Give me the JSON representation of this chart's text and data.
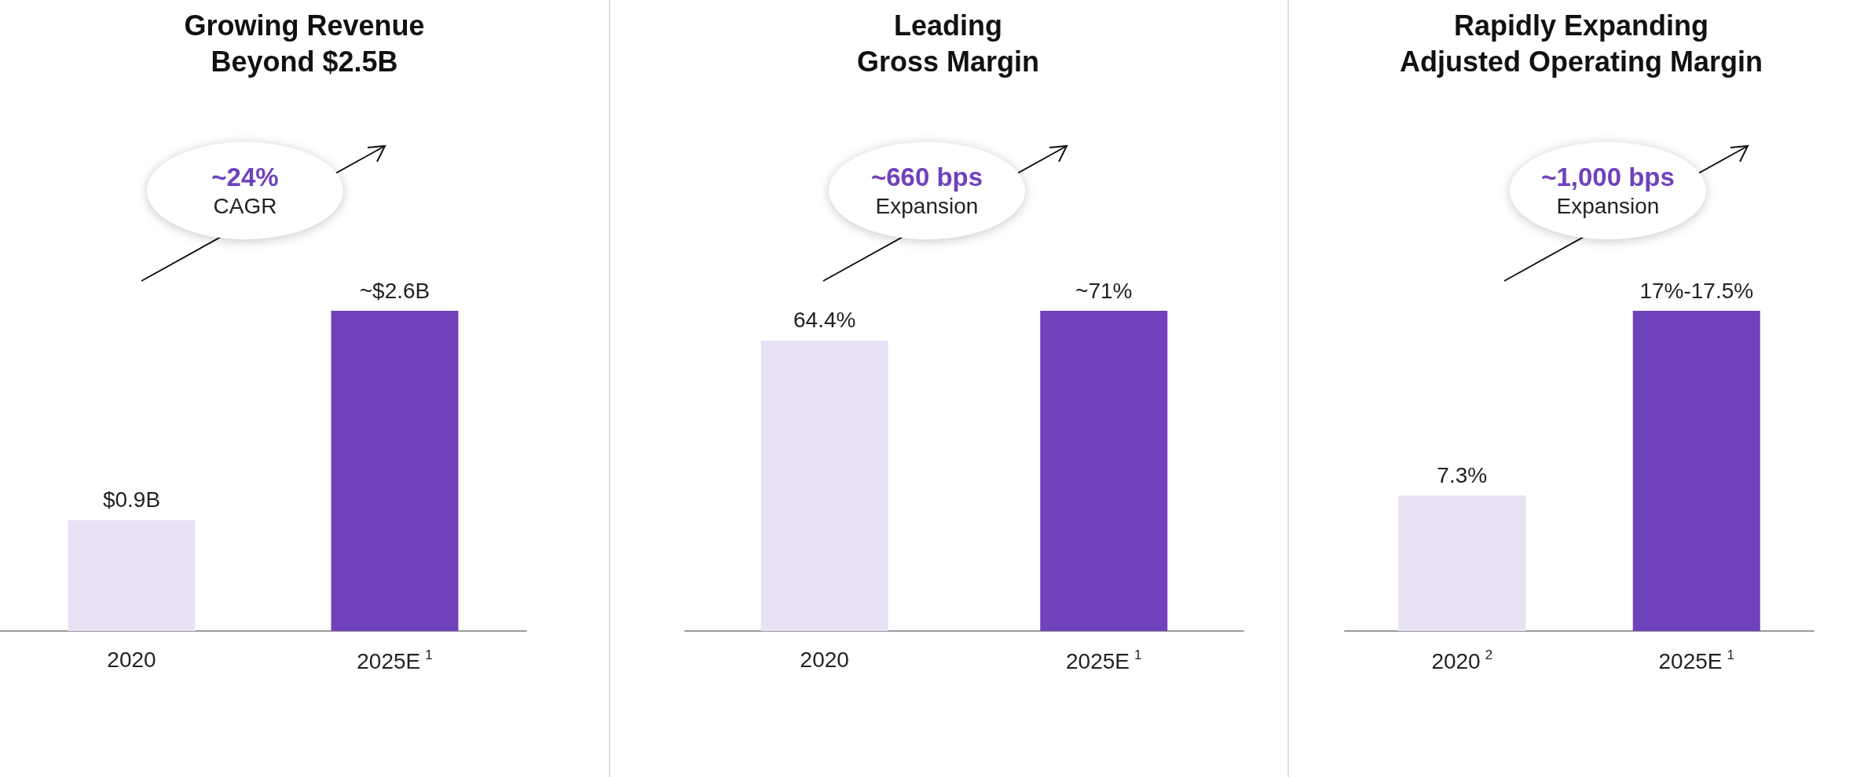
{
  "chart_data": [
    {
      "type": "bar",
      "title": "Growing Revenue\nBeyond $2.5B",
      "categories": [
        "2020",
        "2025E$^{1}$"
      ],
      "values": [
        0.9,
        2.6
      ],
      "value_labels": [
        "$0.9B",
        "~$2.6B"
      ],
      "colors": [
        "#e8e1f4",
        "#6f42bb"
      ],
      "annotations": [
        "~24%",
        "CAGR"
      ]
    },
    {
      "type": "bar",
      "title": "Leading\nGross Margin",
      "categories": [
        "2020",
        "2025E$^{1}$"
      ],
      "values": [
        64.4,
        71
      ],
      "value_labels": [
        "64.4%",
        "~71%"
      ],
      "colors": [
        "#e8e1f4",
        "#6f42bb"
      ],
      "annotations": [
        "~660 bps",
        "Expansion"
      ]
    },
    {
      "type": "bar",
      "title": "Rapidly Expanding\nAdjusted Operating Margin",
      "categories": [
        "2020$^{2}$",
        "2025E$^{1}$"
      ],
      "values": [
        7.3,
        17.25
      ],
      "value_labels": [
        "7.3%",
        "17%-17.5%"
      ],
      "colors": [
        "#e8e1f4",
        "#6f42bb"
      ],
      "annotations": [
        "~1,000 bps",
        "Expansion"
      ]
    }
  ]
}
